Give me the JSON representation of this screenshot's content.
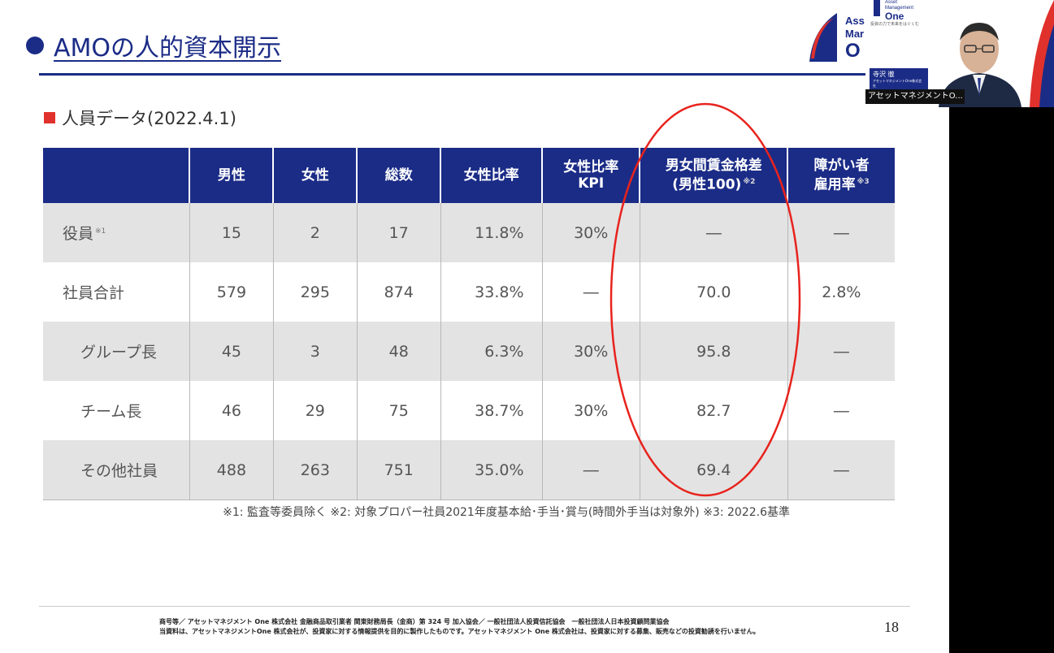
{
  "slide": {
    "title": "AMOの人的資本開示",
    "subtitle": "人員データ(2022.4.1)",
    "page_number": "18",
    "footnote": "※1: 監査等委員除く ※2: 対象プロパー社員2021年度基本給･手当･賞与(時間外手当は対象外) ※3: 2022.6基準",
    "footer_line1": "商号等／ アセットマネジメント One 株式会社 金融商品取引業者 関東財務局長（金商）第 324 号 加入協会／ 一般社団法人投資信託協会　一般社団法人日本投資顧問業協会",
    "footer_line2": "当資料は、アセットマネジメントOne 株式会社が、投資家に対する情報提供を目的に製作したものです。アセットマネジメント One 株式会社は、投資家に対する募集、販売などの投資勧誘を行いません。"
  },
  "logo": {
    "line1": "Ass",
    "line2": "Mar",
    "line3": "O"
  },
  "video": {
    "logo_line1": "Asset",
    "logo_line2": "Management",
    "logo_one": "One",
    "tagline": "投資の力で未来をはぐくむ",
    "name": "寺沢 徹",
    "name_sub": "アセットマネジメントOne株式会社",
    "participant_label": "アセットマネジメントO..."
  },
  "table": {
    "headers": [
      {
        "line1": "",
        "line2": ""
      },
      {
        "line1": "男性",
        "line2": ""
      },
      {
        "line1": "女性",
        "line2": ""
      },
      {
        "line1": "総数",
        "line2": ""
      },
      {
        "line1": "女性比率",
        "line2": ""
      },
      {
        "line1": "女性比率",
        "line2": "KPI"
      },
      {
        "line1": "男女間賃金格差",
        "line2": "(男性100)",
        "note": "※2"
      },
      {
        "line1": "障がい者",
        "line2": "雇用率",
        "note": "※3"
      }
    ],
    "rows": [
      {
        "label": "役員",
        "note": "※1",
        "cells": [
          "15",
          "2",
          "17",
          "11.8%",
          "30%",
          "―",
          "―"
        ]
      },
      {
        "label": "社員合計",
        "cells": [
          "579",
          "295",
          "874",
          "33.8%",
          "―",
          "70.0",
          "2.8%"
        ]
      },
      {
        "label": "グループ長",
        "cells": [
          "45",
          "3",
          "48",
          "6.3%",
          "30%",
          "95.8",
          "―"
        ]
      },
      {
        "label": "チーム長",
        "cells": [
          "46",
          "29",
          "75",
          "38.7%",
          "30%",
          "82.7",
          "―"
        ]
      },
      {
        "label": "その他社員",
        "cells": [
          "488",
          "263",
          "751",
          "35.0%",
          "―",
          "69.4",
          "―"
        ]
      }
    ]
  },
  "colors": {
    "brand_navy": "#1b2c87",
    "accent_red": "#e0312c",
    "row_shade": "#e3e3e3"
  }
}
